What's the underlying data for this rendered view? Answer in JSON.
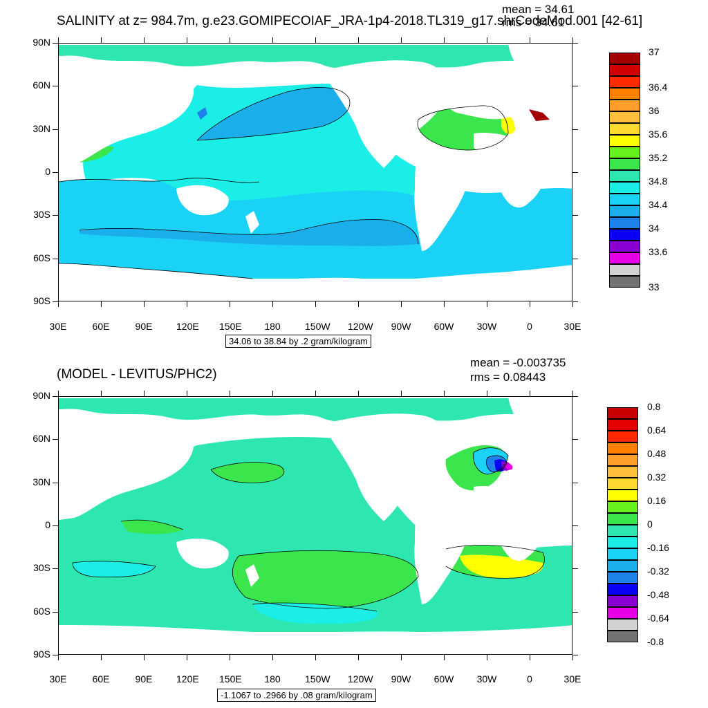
{
  "panels": [
    {
      "title": "SALINITY at z= 984.7m, g.e23.GOMIPECOIAF_JRA-1p4-2018.TL319_g17.shrCodeMod.001 [42-61]",
      "stat_mean": "mean = 34.61",
      "stat_rms": "rms = 34.61",
      "info": "34.06 to 38.84 by .2 gram/kilogram",
      "lat_labels": [
        "90N",
        "60N",
        "30N",
        "0",
        "30S",
        "60S",
        "90S"
      ],
      "lon_labels": [
        "30E",
        "60E",
        "90E",
        "120E",
        "150E",
        "180",
        "150W",
        "120W",
        "90W",
        "60W",
        "30W",
        "0",
        "30E"
      ],
      "colorbar": {
        "colors": [
          "#a30000",
          "#d20000",
          "#ff2a00",
          "#ff7f00",
          "#ff9e2a",
          "#ffbe3c",
          "#ffd92e",
          "#ffff00",
          "#66f01c",
          "#3ae64b",
          "#2ee6b0",
          "#1aeee6",
          "#1ad2f5",
          "#1aafeb",
          "#1e82eb",
          "#0a00f5",
          "#8a00d2",
          "#e600e6",
          "#d2d2d2",
          "#727272"
        ],
        "labels": [
          {
            "text": "37",
            "slot": 0
          },
          {
            "text": "36.4",
            "slot": 3
          },
          {
            "text": "36",
            "slot": 5
          },
          {
            "text": "35.6",
            "slot": 7
          },
          {
            "text": "35.2",
            "slot": 9
          },
          {
            "text": "34.8",
            "slot": 11
          },
          {
            "text": "34.4",
            "slot": 13
          },
          {
            "text": "34",
            "slot": 15
          },
          {
            "text": "33.6",
            "slot": 17
          },
          {
            "text": "33",
            "slot": 20
          }
        ]
      }
    },
    {
      "title": "(MODEL - LEVITUS/PHC2)",
      "stat_mean": "mean = -0.003735",
      "stat_rms": "rms = 0.08443",
      "info": "-1.1067 to .2966 by .08 gram/kilogram",
      "lat_labels": [
        "90N",
        "60N",
        "30N",
        "0",
        "30S",
        "60S",
        "90S"
      ],
      "lon_labels": [
        "30E",
        "60E",
        "90E",
        "120E",
        "150E",
        "180",
        "150W",
        "120W",
        "90W",
        "60W",
        "30W",
        "0",
        "30E"
      ],
      "colorbar": {
        "colors": [
          "#c80000",
          "#e60000",
          "#ff2a00",
          "#ff7f00",
          "#ff9e2a",
          "#ffbe3c",
          "#ffd92e",
          "#ffff00",
          "#66f01c",
          "#3ae64b",
          "#2ee6b0",
          "#1aeee6",
          "#1ad2f5",
          "#1aafeb",
          "#1e82eb",
          "#0a00f5",
          "#8a00d2",
          "#e600e6",
          "#d2d2d2",
          "#727272"
        ],
        "labels": [
          {
            "text": "0.8",
            "slot": 0
          },
          {
            "text": "0.64",
            "slot": 2
          },
          {
            "text": "0.48",
            "slot": 4
          },
          {
            "text": "0.32",
            "slot": 6
          },
          {
            "text": "0.16",
            "slot": 8
          },
          {
            "text": "0",
            "slot": 10
          },
          {
            "text": "-0.16",
            "slot": 12
          },
          {
            "text": "-0.32",
            "slot": 14
          },
          {
            "text": "-0.48",
            "slot": 16
          },
          {
            "text": "-0.64",
            "slot": 18
          },
          {
            "text": "-0.8",
            "slot": 20
          }
        ]
      }
    }
  ]
}
